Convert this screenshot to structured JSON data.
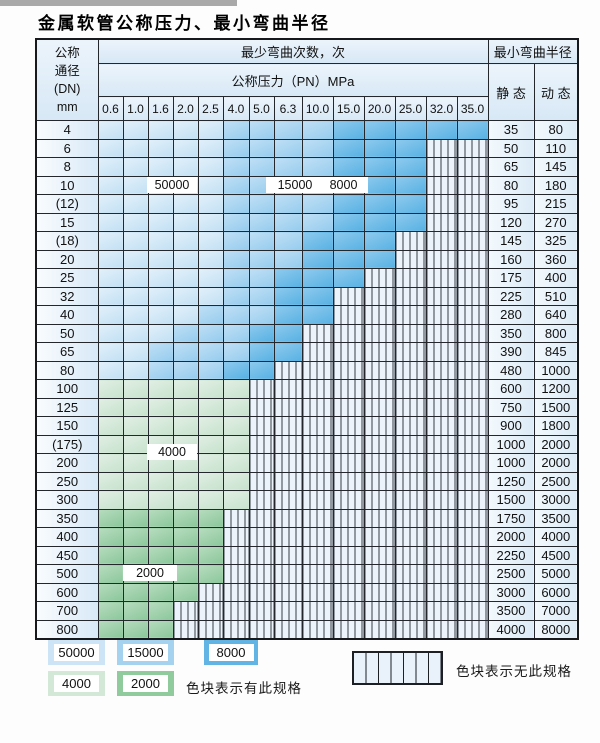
{
  "title": "金属软管公称压力、最小弯曲半径",
  "table": {
    "dn_lines": [
      "公称",
      "通径",
      "(DN)",
      "mm"
    ],
    "bend_header": "最少弯曲次数，次",
    "pressure_header": "公称压力（PN）MPa",
    "radius_header": "最小弯曲半径",
    "static_header": "静 态",
    "dynamic_header": "动 态",
    "pressure_values": [
      "0.6",
      "1.0",
      "1.6",
      "2.0",
      "2.5",
      "4.0",
      "5.0",
      "6.3",
      "10.0",
      "15.0",
      "20.0",
      "25.0",
      "32.0",
      "35.0"
    ]
  },
  "overlays": [
    {
      "text": "50000"
    },
    {
      "text": "15000"
    },
    {
      "text": "8000"
    },
    {
      "text": "4000"
    },
    {
      "text": "2000"
    }
  ],
  "legend": {
    "items": [
      {
        "value": "50000",
        "color": "#cde4f6"
      },
      {
        "value": "15000",
        "color": "#a5d2ef"
      },
      {
        "value": "8000",
        "color": "#62b4e5"
      },
      {
        "value": "4000",
        "color": "#d3e8d7"
      },
      {
        "value": "2000",
        "color": "#90cb9d"
      }
    ],
    "has_spec_text": "色块表示有此规格",
    "no_spec_text": "色块表示无此规格"
  },
  "colors": {
    "zone_50000": "#c2e0f4",
    "zone_15000": "#95ccee",
    "zone_8000": "#57b1e3",
    "zone_4000": "#c7e2cd",
    "zone_2000": "#8bc79a",
    "hatch_bg": "#edf3fb",
    "border": "#24282c"
  },
  "chart_data": {
    "type": "table",
    "title": "金属软管公称压力、最小弯曲半径",
    "columns_pressure_MPa": [
      "0.6",
      "1.0",
      "1.6",
      "2.0",
      "2.5",
      "4.0",
      "5.0",
      "6.3",
      "10.0",
      "15.0",
      "20.0",
      "25.0",
      "32.0",
      "35.0"
    ],
    "fill_legend": {
      "L": "50000次",
      "M": "15000次",
      "D": "8000次",
      "A": "4000次",
      "B": "2000次",
      "H": "无此规格"
    },
    "notes": [
      "色块表示有此规格",
      "竖线色块表示无此规格"
    ],
    "rows": [
      {
        "dn": "4",
        "fills": "LLLLLMMMMDDDDD",
        "static": "35",
        "dynamic": "80"
      },
      {
        "dn": "6",
        "fills": "LLLLLMMMMDDDHH",
        "static": "50",
        "dynamic": "110"
      },
      {
        "dn": "8",
        "fills": "LLLLLMMMMDDDHH",
        "static": "65",
        "dynamic": "145"
      },
      {
        "dn": "10",
        "fills": "LLLLLMMMMDDDHH",
        "static": "80",
        "dynamic": "180"
      },
      {
        "dn": "(12)",
        "fills": "LLLLLMMMMDDDHH",
        "static": "95",
        "dynamic": "215"
      },
      {
        "dn": "15",
        "fills": "LLLLLMMMMDDDHH",
        "static": "120",
        "dynamic": "270"
      },
      {
        "dn": "(18)",
        "fills": "LLLLLMMMDDDHHH",
        "static": "145",
        "dynamic": "325"
      },
      {
        "dn": "20",
        "fills": "LLLLLMMMDDDHHH",
        "static": "160",
        "dynamic": "360"
      },
      {
        "dn": "25",
        "fills": "LLLLLMMDDDHHHH",
        "static": "175",
        "dynamic": "400"
      },
      {
        "dn": "32",
        "fills": "LLLLLMMDDHHHHH",
        "static": "225",
        "dynamic": "510"
      },
      {
        "dn": "40",
        "fills": "LLLLMMMDDHHHHH",
        "static": "280",
        "dynamic": "640"
      },
      {
        "dn": "50",
        "fills": "LLLMMMDDHHHHHH",
        "static": "350",
        "dynamic": "800"
      },
      {
        "dn": "65",
        "fills": "LLMMMMDDHHHHHH",
        "static": "390",
        "dynamic": "845"
      },
      {
        "dn": "80",
        "fills": "LLMMMDDHHHHHHH",
        "static": "480",
        "dynamic": "1000"
      },
      {
        "dn": "100",
        "fills": "AAAAAAHHHHHHHH",
        "static": "600",
        "dynamic": "1200"
      },
      {
        "dn": "125",
        "fills": "AAAAAAHHHHHHHH",
        "static": "750",
        "dynamic": "1500"
      },
      {
        "dn": "150",
        "fills": "AAAAAAHHHHHHHH",
        "static": "900",
        "dynamic": "1800"
      },
      {
        "dn": "(175)",
        "fills": "AAAAAAHHHHHHHH",
        "static": "1000",
        "dynamic": "2000"
      },
      {
        "dn": "200",
        "fills": "AAAAAAHHHHHHHH",
        "static": "1000",
        "dynamic": "2000"
      },
      {
        "dn": "250",
        "fills": "AAAAAAHHHHHHHH",
        "static": "1250",
        "dynamic": "2500"
      },
      {
        "dn": "300",
        "fills": "AAAAAAHHHHHHHH",
        "static": "1500",
        "dynamic": "3000"
      },
      {
        "dn": "350",
        "fills": "BBBBBHHHHHHHHH",
        "static": "1750",
        "dynamic": "3500"
      },
      {
        "dn": "400",
        "fills": "BBBBBHHHHHHHHH",
        "static": "2000",
        "dynamic": "4000"
      },
      {
        "dn": "450",
        "fills": "BBBBBHHHHHHHHH",
        "static": "2250",
        "dynamic": "4500"
      },
      {
        "dn": "500",
        "fills": "BBBBBHHHHHHHHH",
        "static": "2500",
        "dynamic": "5000"
      },
      {
        "dn": "600",
        "fills": "BBBBHHHHHHHHHH",
        "static": "3000",
        "dynamic": "6000"
      },
      {
        "dn": "700",
        "fills": "BBBHHHHHHHHHHH",
        "static": "3500",
        "dynamic": "7000"
      },
      {
        "dn": "800",
        "fills": "BBBHHHHHHHHHHH",
        "static": "4000",
        "dynamic": "8000"
      }
    ]
  }
}
